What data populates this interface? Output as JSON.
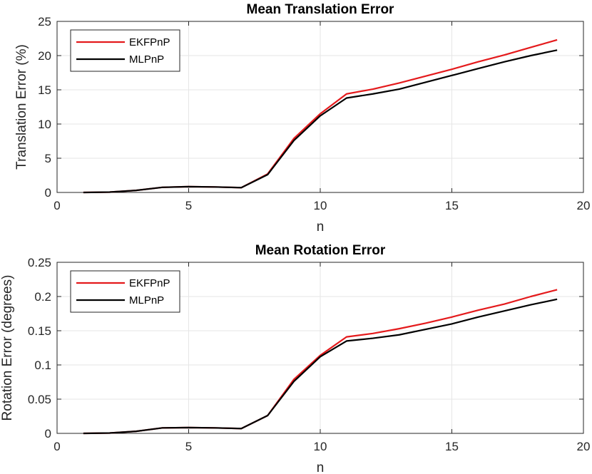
{
  "chart_data": [
    {
      "type": "line",
      "title": "Mean Translation Error",
      "xlabel": "n",
      "ylabel": "Translation Error (%)",
      "xlim": [
        0,
        20
      ],
      "ylim": [
        0,
        25
      ],
      "xticks": [
        0,
        5,
        10,
        15,
        20
      ],
      "yticks": [
        0,
        5,
        10,
        15,
        20,
        25
      ],
      "xtick_labels": [
        "0",
        "5",
        "10",
        "15",
        "20"
      ],
      "ytick_labels": [
        "0",
        "5",
        "10",
        "15",
        "20",
        "25"
      ],
      "grid": true,
      "legend_position": "top-left",
      "x": [
        1,
        2,
        3,
        4,
        5,
        6,
        7,
        8,
        9,
        10,
        11,
        12,
        13,
        14,
        15,
        16,
        17,
        18,
        19
      ],
      "series": [
        {
          "name": "EKFPnP",
          "color": "#e41a1c",
          "values": [
            0.0,
            0.05,
            0.3,
            0.75,
            0.85,
            0.8,
            0.7,
            2.7,
            7.9,
            11.5,
            14.4,
            15.1,
            16.0,
            17.0,
            18.0,
            19.1,
            20.1,
            21.2,
            22.3
          ]
        },
        {
          "name": "MLPnP",
          "color": "#000000",
          "values": [
            0.0,
            0.05,
            0.3,
            0.75,
            0.85,
            0.8,
            0.7,
            2.6,
            7.6,
            11.2,
            13.8,
            14.4,
            15.1,
            16.1,
            17.1,
            18.1,
            19.1,
            20.0,
            20.8
          ]
        }
      ]
    },
    {
      "type": "line",
      "title": "Mean Rotation Error",
      "xlabel": "n",
      "ylabel": "Rotation Error (degrees)",
      "xlim": [
        0,
        20
      ],
      "ylim": [
        0,
        0.25
      ],
      "xticks": [
        0,
        5,
        10,
        15,
        20
      ],
      "yticks": [
        0,
        0.05,
        0.1,
        0.15,
        0.2,
        0.25
      ],
      "xtick_labels": [
        "0",
        "5",
        "10",
        "15",
        "20"
      ],
      "ytick_labels": [
        "0",
        "0.05",
        "0.1",
        "0.15",
        "0.2",
        "0.25"
      ],
      "grid": true,
      "legend_position": "top-left",
      "x": [
        1,
        2,
        3,
        4,
        5,
        6,
        7,
        8,
        9,
        10,
        11,
        12,
        13,
        14,
        15,
        16,
        17,
        18,
        19
      ],
      "series": [
        {
          "name": "EKFPnP",
          "color": "#e41a1c",
          "values": [
            0.0,
            0.0005,
            0.003,
            0.008,
            0.0085,
            0.008,
            0.007,
            0.026,
            0.079,
            0.114,
            0.141,
            0.146,
            0.153,
            0.161,
            0.17,
            0.18,
            0.189,
            0.2,
            0.21
          ]
        },
        {
          "name": "MLPnP",
          "color": "#000000",
          "values": [
            0.0,
            0.0005,
            0.003,
            0.008,
            0.0085,
            0.008,
            0.007,
            0.026,
            0.076,
            0.112,
            0.135,
            0.139,
            0.144,
            0.152,
            0.16,
            0.17,
            0.179,
            0.188,
            0.196
          ]
        }
      ]
    }
  ]
}
